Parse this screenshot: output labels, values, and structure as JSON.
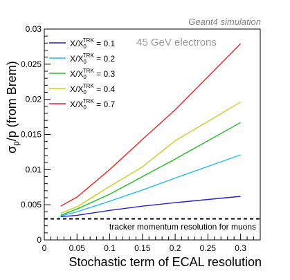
{
  "header": {
    "label": "Geant4 simulation"
  },
  "annotation": "45 GeV electrons",
  "chart_data": {
    "type": "line",
    "xlabel": "Stochastic term of ECAL resolution",
    "ylabel": {
      "main": "σ",
      "sub": "p",
      "rest": "/p (from Brem)"
    },
    "xlim": [
      0,
      0.33
    ],
    "ylim": [
      0,
      0.03
    ],
    "x_ticks": [
      0.05,
      0.1,
      0.15,
      0.2,
      0.25,
      0.3
    ],
    "x_tick_labels": [
      "0.05",
      "0.1",
      "0.15",
      "0.2",
      "0.25",
      "0.3"
    ],
    "x_zero_label": "0",
    "y_ticks": [
      0.005,
      0.01,
      0.015,
      0.02,
      0.025,
      0.03
    ],
    "y_tick_labels": [
      "0.005",
      "0.01",
      "0.015",
      "0.02",
      "0.025",
      "0.03"
    ],
    "y_zero_label": "0",
    "x": [
      0.025,
      0.05,
      0.1,
      0.15,
      0.2,
      0.3
    ],
    "series": [
      {
        "name": "X/X0TRK = 0.1",
        "label": {
          "pre": "X/X",
          "sub": "0",
          "sup": "TRK",
          "post": " = 0.1"
        },
        "color": "#2222cc",
        "values": [
          0.0033,
          0.0035,
          0.0042,
          0.0048,
          0.0053,
          0.0062
        ]
      },
      {
        "name": "X/X0TRK = 0.2",
        "label": {
          "pre": "X/X",
          "sub": "0",
          "sup": "TRK",
          "post": " = 0.2"
        },
        "color": "#22bbee",
        "values": [
          0.0034,
          0.004,
          0.0055,
          0.0071,
          0.0088,
          0.0121
        ]
      },
      {
        "name": "X/X0TRK = 0.3",
        "label": {
          "pre": "X/X",
          "sub": "0",
          "sup": "TRK",
          "post": " = 0.3"
        },
        "color": "#22bb22",
        "values": [
          0.0035,
          0.0044,
          0.0065,
          0.009,
          0.0115,
          0.0167
        ]
      },
      {
        "name": "X/X0TRK = 0.4",
        "label": {
          "pre": "X/X",
          "sub": "0",
          "sup": "TRK",
          "post": " = 0.4"
        },
        "color": "#cccc22",
        "values": [
          0.0038,
          0.0047,
          0.0076,
          0.0104,
          0.0141,
          0.0196
        ]
      },
      {
        "name": "X/X0TRK = 0.7",
        "label": {
          "pre": "X/X",
          "sub": "0",
          "sup": "TRK",
          "post": " = 0.7"
        },
        "color": "#ee2222",
        "values": [
          0.0048,
          0.0061,
          0.01,
          0.0143,
          0.0185,
          0.0279
        ]
      }
    ],
    "reference_line": {
      "value": 0.003,
      "label": "tracker momentum resolution for muons",
      "style": "dashed",
      "color": "#000000"
    },
    "legend_position": "top-left",
    "grid": false
  }
}
